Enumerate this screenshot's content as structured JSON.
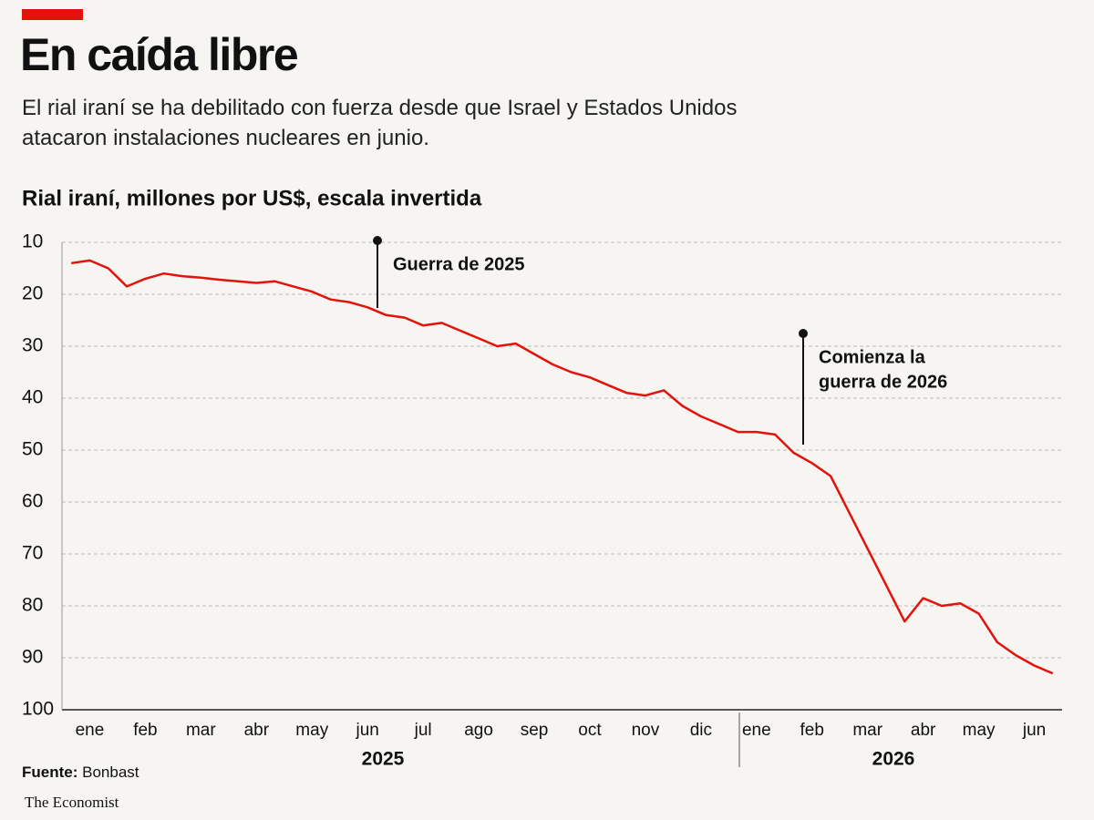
{
  "chart_data": {
    "type": "line",
    "title": "En caída libre",
    "subtitle": "El rial iraní se ha debilitado con fuerza desde que Israel y Estados Unidos atacaron instalaciones nucleares en junio.",
    "y_label": "Rial iraní, millones por US$, escala invertida",
    "categories": [
      "ene",
      null,
      null,
      "feb",
      null,
      null,
      "mar",
      null,
      null,
      "abr",
      null,
      null,
      "may",
      null,
      null,
      "jun",
      null,
      null,
      "jul",
      null,
      null,
      "ago",
      null,
      null,
      "sep",
      null,
      null,
      "oct",
      null,
      null,
      "nov",
      null,
      null,
      "dic",
      null,
      null,
      "ene",
      null,
      null,
      "feb",
      null,
      null,
      "mar",
      null,
      null,
      "abr",
      null,
      null,
      "may",
      null,
      null,
      "jun",
      null,
      null
    ],
    "years": [
      "2025",
      "2026"
    ],
    "series": [
      {
        "color": "#e3120b",
        "values": [
          14,
          13.5,
          15,
          18.5,
          17,
          16,
          16.5,
          16.8,
          17.2,
          17.5,
          17.8,
          17.5,
          18.5,
          19.5,
          21,
          21.5,
          22.5,
          24,
          24.5,
          26,
          25.5,
          27,
          28.5,
          30,
          29.5,
          31.5,
          33.5,
          35,
          36,
          37.5,
          39,
          39.5,
          38.5,
          41.5,
          43.5,
          45,
          46.5,
          46.5,
          47,
          50.5,
          52.5,
          55,
          62,
          69,
          76,
          83,
          78.5,
          80,
          79.5,
          81.5,
          87,
          89.5,
          91.5,
          93
        ]
      }
    ],
    "ylim": [
      10,
      100
    ],
    "y_inverted": true,
    "yticks": [
      10,
      20,
      30,
      40,
      50,
      60,
      70,
      80,
      90,
      100
    ],
    "grid": true,
    "annotations": [
      {
        "lines": [
          "Guerra de 2025"
        ]
      },
      {
        "lines": [
          "Comienza la",
          "guerra de 2026"
        ]
      }
    ],
    "source_label": "Fuente:",
    "source": "Bonbast",
    "publisher": "The Economist"
  }
}
